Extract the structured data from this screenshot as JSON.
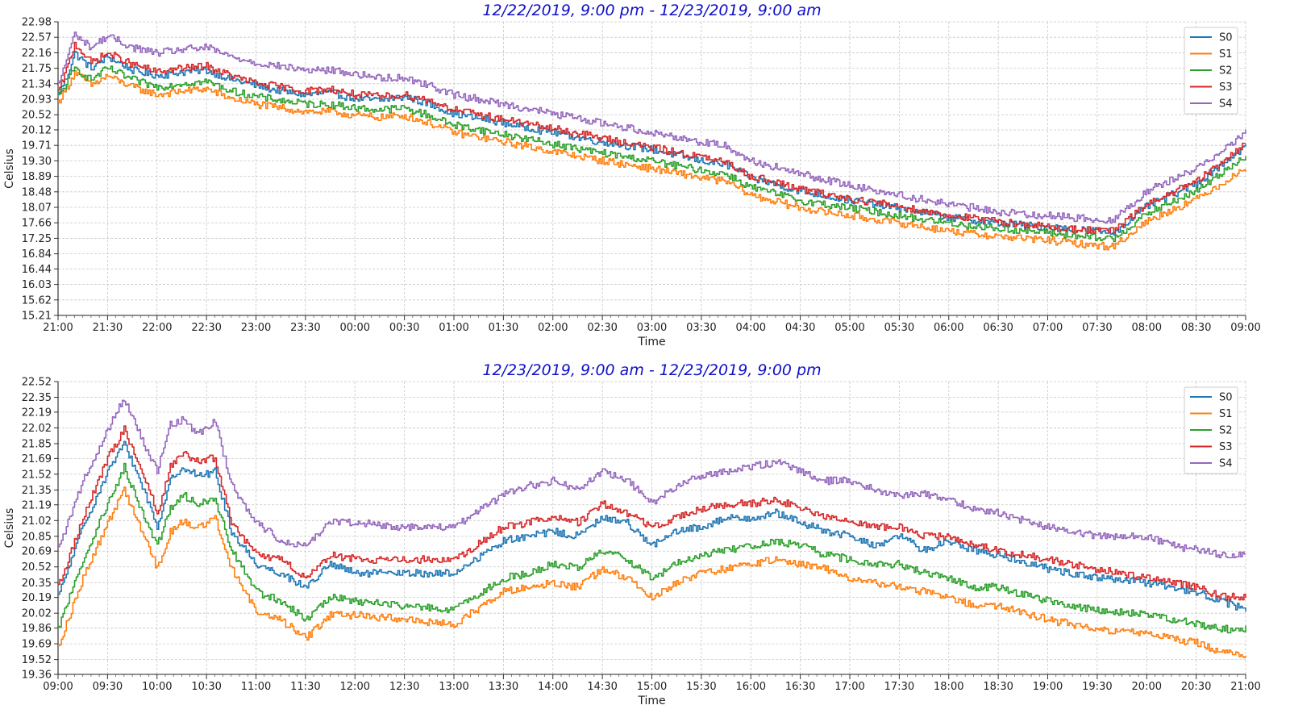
{
  "chart_data": [
    {
      "type": "line",
      "title": "12/22/2019, 9:00 pm - 12/23/2019, 9:00 am",
      "xlabel": "Time",
      "ylabel": "Celsius",
      "xlim": [
        "21:00",
        "09:00"
      ],
      "ylim": [
        15.21,
        22.98
      ],
      "x_ticks": [
        "21:00",
        "21:30",
        "22:00",
        "22:30",
        "23:00",
        "23:30",
        "00:00",
        "00:30",
        "01:00",
        "01:30",
        "02:00",
        "02:30",
        "03:00",
        "03:30",
        "04:00",
        "04:30",
        "05:00",
        "05:30",
        "06:00",
        "06:30",
        "07:00",
        "07:30",
        "08:00",
        "08:30",
        "09:00"
      ],
      "y_ticks": [
        "15.21",
        "15.62",
        "16.03",
        "16.44",
        "16.84",
        "17.25",
        "17.66",
        "18.07",
        "18.48",
        "18.89",
        "19.30",
        "19.71",
        "20.12",
        "20.52",
        "20.93",
        "21.34",
        "21.75",
        "22.16",
        "22.57",
        "22.98"
      ],
      "grid": true,
      "legend_position": "top-right",
      "x": [
        "21:00",
        "21:05",
        "21:10",
        "21:20",
        "21:30",
        "21:45",
        "22:00",
        "22:15",
        "22:30",
        "22:45",
        "23:00",
        "23:15",
        "23:30",
        "23:45",
        "00:00",
        "00:15",
        "00:30",
        "00:45",
        "01:00",
        "01:30",
        "02:00",
        "02:30",
        "03:00",
        "03:30",
        "03:45",
        "04:00",
        "04:30",
        "05:00",
        "05:30",
        "06:00",
        "06:30",
        "07:00",
        "07:30",
        "07:40",
        "08:00",
        "08:30",
        "09:00"
      ],
      "series": [
        {
          "name": "S0",
          "color": "#1f77b4",
          "values": [
            21.05,
            21.5,
            22.15,
            21.75,
            22.05,
            21.7,
            21.55,
            21.65,
            21.7,
            21.45,
            21.3,
            21.15,
            21.05,
            21.1,
            20.95,
            20.9,
            21.0,
            20.8,
            20.55,
            20.3,
            20.05,
            19.8,
            19.6,
            19.3,
            19.2,
            18.85,
            18.5,
            18.25,
            18.05,
            17.8,
            17.65,
            17.55,
            17.45,
            17.4,
            18.1,
            18.7,
            19.7
          ]
        },
        {
          "name": "S1",
          "color": "#ff7f0e",
          "values": [
            20.85,
            21.2,
            21.65,
            21.3,
            21.55,
            21.25,
            21.05,
            21.15,
            21.2,
            20.95,
            20.8,
            20.7,
            20.6,
            20.6,
            20.5,
            20.45,
            20.5,
            20.3,
            20.05,
            19.8,
            19.55,
            19.3,
            19.1,
            18.85,
            18.75,
            18.4,
            18.05,
            17.85,
            17.65,
            17.45,
            17.3,
            17.2,
            17.05,
            17.05,
            17.7,
            18.3,
            19.1
          ]
        },
        {
          "name": "S2",
          "color": "#2ca02c",
          "values": [
            21.0,
            21.35,
            21.75,
            21.45,
            21.75,
            21.45,
            21.25,
            21.35,
            21.4,
            21.15,
            21.0,
            20.9,
            20.8,
            20.8,
            20.7,
            20.65,
            20.7,
            20.5,
            20.25,
            20.0,
            19.75,
            19.5,
            19.3,
            19.05,
            18.95,
            18.6,
            18.25,
            18.05,
            17.85,
            17.65,
            17.5,
            17.4,
            17.25,
            17.25,
            17.9,
            18.5,
            19.45
          ]
        },
        {
          "name": "S3",
          "color": "#d62728",
          "values": [
            21.1,
            21.7,
            22.4,
            21.9,
            22.15,
            21.85,
            21.65,
            21.75,
            21.8,
            21.55,
            21.35,
            21.25,
            21.15,
            21.2,
            21.05,
            21.0,
            21.05,
            20.9,
            20.65,
            20.4,
            20.15,
            19.9,
            19.65,
            19.4,
            19.25,
            18.9,
            18.55,
            18.3,
            18.1,
            17.85,
            17.7,
            17.55,
            17.45,
            17.45,
            18.15,
            18.75,
            19.75
          ]
        },
        {
          "name": "S4",
          "color": "#9467bd",
          "values": [
            21.3,
            22.0,
            22.65,
            22.3,
            22.6,
            22.3,
            22.15,
            22.25,
            22.3,
            22.05,
            21.9,
            21.8,
            21.7,
            21.7,
            21.6,
            21.5,
            21.5,
            21.3,
            21.05,
            20.8,
            20.55,
            20.3,
            20.05,
            19.8,
            19.7,
            19.3,
            18.95,
            18.65,
            18.4,
            18.15,
            17.95,
            17.85,
            17.75,
            17.75,
            18.5,
            19.1,
            20.05
          ]
        }
      ]
    },
    {
      "type": "line",
      "title": "12/23/2019, 9:00 am - 12/23/2019, 9:00 pm",
      "xlabel": "Time",
      "ylabel": "Celsius",
      "xlim": [
        "09:00",
        "21:00"
      ],
      "ylim": [
        19.36,
        22.52
      ],
      "x_ticks": [
        "09:00",
        "09:30",
        "10:00",
        "10:30",
        "11:00",
        "11:30",
        "12:00",
        "12:30",
        "13:00",
        "13:30",
        "14:00",
        "14:30",
        "15:00",
        "15:30",
        "16:00",
        "16:30",
        "17:00",
        "17:30",
        "18:00",
        "18:30",
        "19:00",
        "19:30",
        "20:00",
        "20:30",
        "21:00"
      ],
      "y_ticks": [
        "19.36",
        "19.52",
        "19.69",
        "19.86",
        "20.02",
        "20.19",
        "20.35",
        "20.52",
        "20.69",
        "20.85",
        "21.02",
        "21.19",
        "21.35",
        "21.52",
        "21.69",
        "21.85",
        "22.02",
        "22.19",
        "22.35",
        "22.52"
      ],
      "grid": true,
      "legend_position": "top-right",
      "x": [
        "09:00",
        "09:15",
        "09:30",
        "09:40",
        "09:52",
        "10:00",
        "10:08",
        "10:15",
        "10:25",
        "10:35",
        "10:45",
        "11:00",
        "11:15",
        "11:30",
        "11:45",
        "12:00",
        "12:30",
        "13:00",
        "13:30",
        "13:45",
        "14:00",
        "14:15",
        "14:30",
        "14:45",
        "15:00",
        "15:15",
        "15:30",
        "15:45",
        "16:00",
        "16:15",
        "16:30",
        "16:45",
        "17:00",
        "17:15",
        "17:30",
        "17:45",
        "18:00",
        "18:15",
        "18:30",
        "19:00",
        "19:30",
        "20:00",
        "20:15",
        "20:30",
        "20:45",
        "21:00"
      ],
      "series": [
        {
          "name": "S0",
          "color": "#1f77b4",
          "values": [
            20.2,
            20.95,
            21.55,
            21.85,
            21.35,
            20.95,
            21.45,
            21.6,
            21.5,
            21.55,
            20.9,
            20.55,
            20.45,
            20.3,
            20.55,
            20.45,
            20.45,
            20.45,
            20.8,
            20.85,
            20.9,
            20.85,
            21.05,
            21.0,
            20.75,
            20.9,
            20.95,
            21.05,
            21.05,
            21.1,
            21.0,
            20.9,
            20.85,
            20.75,
            20.85,
            20.7,
            20.8,
            20.7,
            20.65,
            20.5,
            20.4,
            20.35,
            20.3,
            20.25,
            20.15,
            20.05
          ]
        },
        {
          "name": "S1",
          "color": "#ff7f0e",
          "values": [
            19.65,
            20.4,
            21.0,
            21.35,
            20.85,
            20.5,
            20.9,
            21.0,
            20.95,
            21.05,
            20.5,
            20.05,
            19.95,
            19.75,
            20.0,
            20.0,
            19.95,
            19.9,
            20.25,
            20.3,
            20.35,
            20.3,
            20.5,
            20.4,
            20.2,
            20.35,
            20.45,
            20.5,
            20.55,
            20.6,
            20.55,
            20.5,
            20.4,
            20.35,
            20.3,
            20.25,
            20.2,
            20.1,
            20.1,
            19.95,
            19.85,
            19.8,
            19.75,
            19.7,
            19.6,
            19.55
          ]
        },
        {
          "name": "S2",
          "color": "#2ca02c",
          "values": [
            19.85,
            20.6,
            21.2,
            21.6,
            21.05,
            20.75,
            21.15,
            21.3,
            21.2,
            21.25,
            20.7,
            20.25,
            20.15,
            19.95,
            20.2,
            20.15,
            20.1,
            20.05,
            20.4,
            20.45,
            20.55,
            20.5,
            20.7,
            20.6,
            20.4,
            20.55,
            20.65,
            20.7,
            20.75,
            20.8,
            20.75,
            20.65,
            20.6,
            20.55,
            20.55,
            20.45,
            20.4,
            20.3,
            20.3,
            20.15,
            20.05,
            20.0,
            19.95,
            19.9,
            19.85,
            19.85
          ]
        },
        {
          "name": "S3",
          "color": "#d62728",
          "values": [
            20.3,
            21.05,
            21.7,
            22.0,
            21.5,
            21.1,
            21.6,
            21.75,
            21.65,
            21.7,
            21.0,
            20.65,
            20.6,
            20.4,
            20.65,
            20.6,
            20.6,
            20.6,
            20.95,
            21.0,
            21.05,
            21.0,
            21.2,
            21.1,
            20.95,
            21.05,
            21.15,
            21.2,
            21.2,
            21.25,
            21.15,
            21.05,
            21.0,
            20.95,
            20.95,
            20.85,
            20.85,
            20.75,
            20.7,
            20.6,
            20.5,
            20.4,
            20.35,
            20.3,
            20.2,
            20.2
          ]
        },
        {
          "name": "S4",
          "color": "#9467bd",
          "values": [
            20.7,
            21.45,
            22.0,
            22.35,
            21.85,
            21.55,
            22.05,
            22.1,
            21.95,
            22.1,
            21.4,
            21.0,
            20.8,
            20.75,
            21.0,
            21.0,
            20.95,
            20.95,
            21.3,
            21.4,
            21.45,
            21.35,
            21.55,
            21.45,
            21.2,
            21.4,
            21.5,
            21.55,
            21.6,
            21.65,
            21.55,
            21.45,
            21.45,
            21.35,
            21.3,
            21.3,
            21.25,
            21.15,
            21.1,
            20.95,
            20.85,
            20.85,
            20.75,
            20.7,
            20.65,
            20.65
          ]
        }
      ]
    }
  ]
}
